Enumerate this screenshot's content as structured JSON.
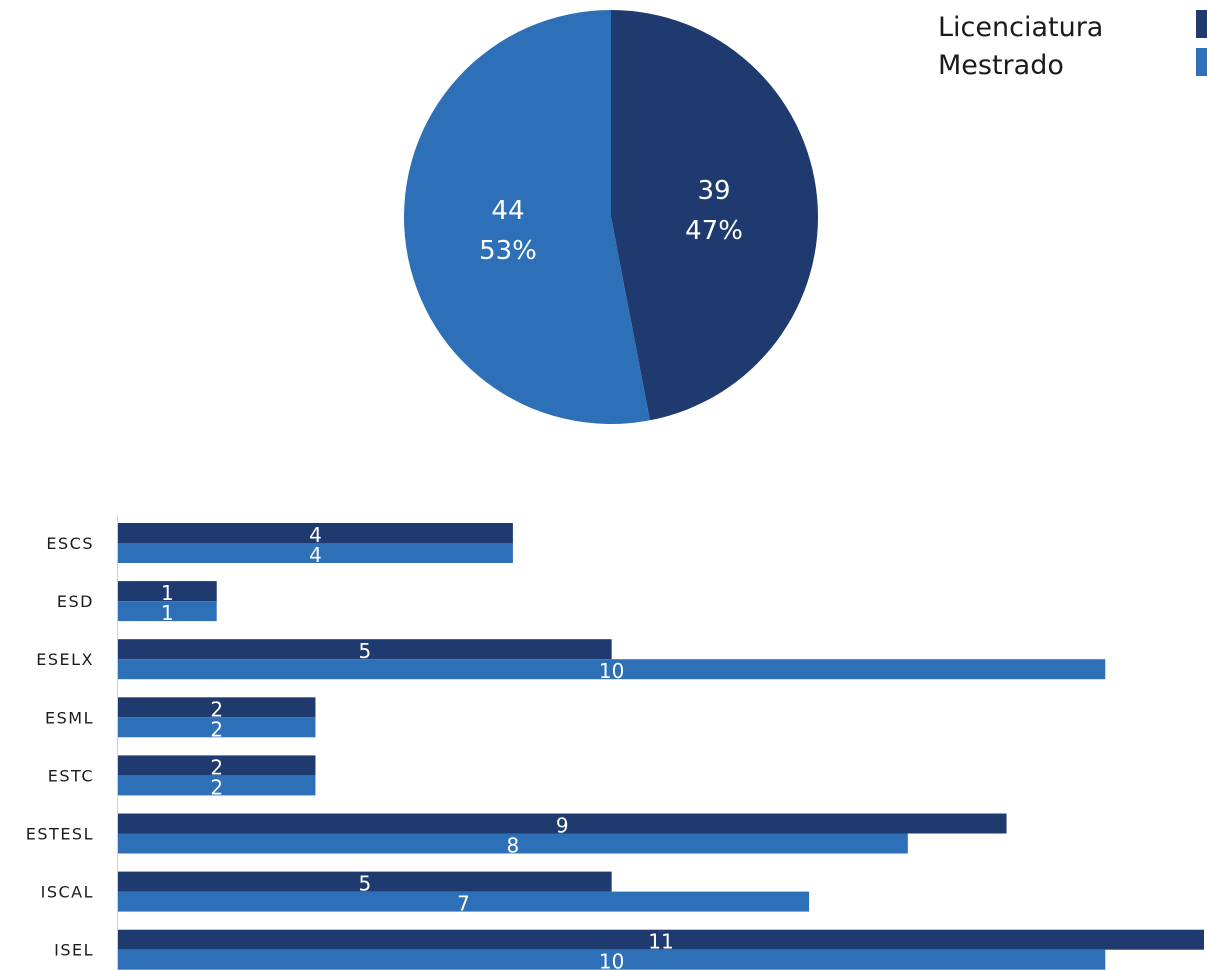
{
  "chart_data": [
    {
      "type": "pie",
      "slices": [
        {
          "name": "Licenciatura",
          "value": 39,
          "percent": "47%",
          "color": "#1e3a6e"
        },
        {
          "name": "Mestrado",
          "value": 44,
          "percent": "53%",
          "color": "#2e70b8"
        }
      ],
      "legend": "top-right",
      "legend_entries": [
        "Licenciatura",
        "Mestrado"
      ]
    },
    {
      "type": "bar",
      "orientation": "horizontal",
      "categories": [
        "ESCS",
        "ESD",
        "ESELX",
        "ESML",
        "ESTC",
        "ESTESL",
        "ISCAL",
        "ISEL"
      ],
      "series": [
        {
          "name": "Licenciatura",
          "color": "#1e3a6e",
          "values": [
            4,
            1,
            5,
            2,
            2,
            9,
            5,
            11
          ]
        },
        {
          "name": "Mestrado",
          "color": "#2e70b8",
          "values": [
            4,
            1,
            10,
            2,
            2,
            8,
            7,
            10
          ]
        }
      ],
      "xlim": [
        0,
        11
      ],
      "grid": false
    }
  ]
}
